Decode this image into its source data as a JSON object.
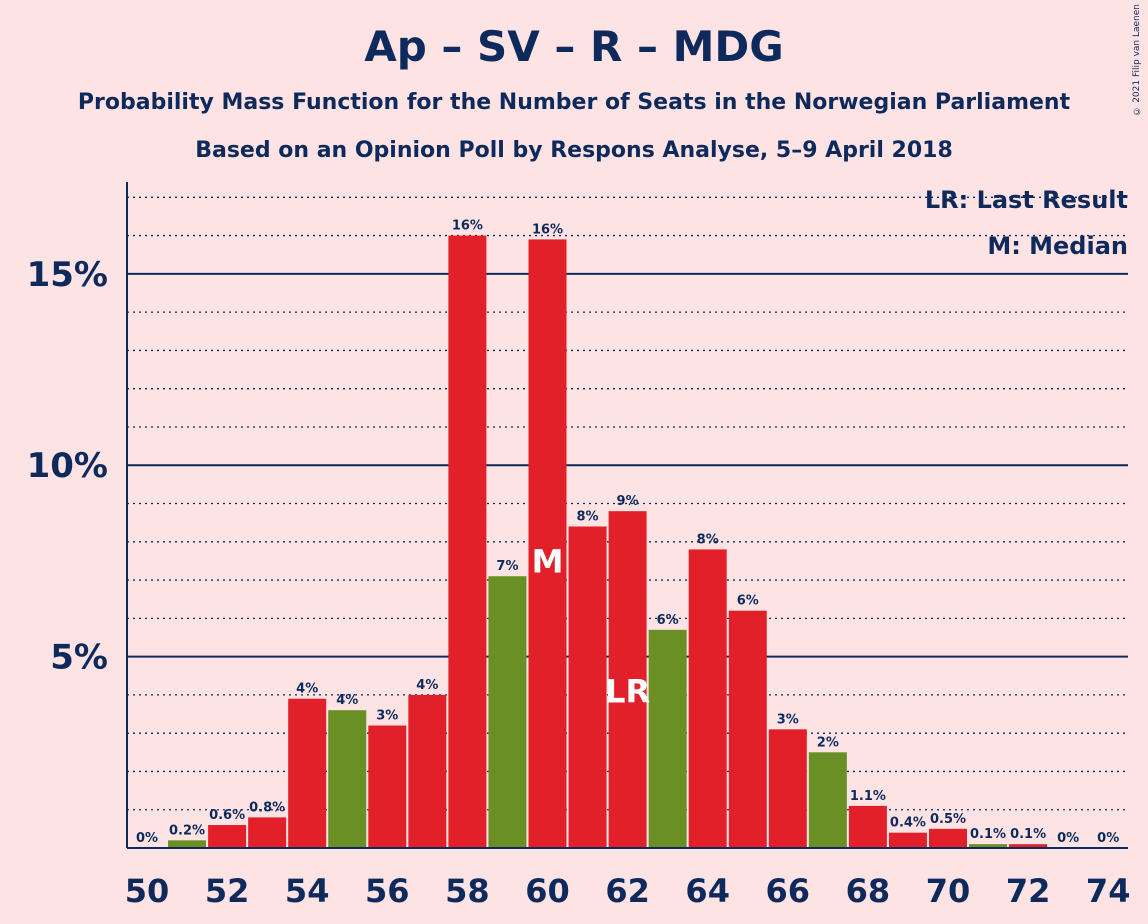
{
  "header": {
    "title": "Ap – SV – R – MDG",
    "subtitle1": "Probability Mass Function for the Number of Seats in the Norwegian Parliament",
    "subtitle2": "Based on an Opinion Poll by Respons Analyse, 5–9 April 2018",
    "copyright": "© 2021 Filip van Laenen"
  },
  "legend": {
    "last_result": "LR: Last Result",
    "median": "M: Median"
  },
  "colors": {
    "red": "#e2202a",
    "green": "#6a8f24",
    "axis": "#0e2a5c",
    "background": "#fde3e3"
  },
  "chart_data": {
    "type": "bar",
    "x": [
      50,
      51,
      52,
      53,
      54,
      55,
      56,
      57,
      58,
      59,
      60,
      61,
      62,
      63,
      64,
      65,
      66,
      67,
      68,
      69,
      70,
      71,
      72,
      73,
      74
    ],
    "values": [
      0,
      0.2,
      0.6,
      0.8,
      3.9,
      3.6,
      3.2,
      4.0,
      16.0,
      7.1,
      15.9,
      8.4,
      8.8,
      5.7,
      7.8,
      6.2,
      3.1,
      2.5,
      1.1,
      0.4,
      0.5,
      0.1,
      0.1,
      0,
      0
    ],
    "labels": [
      "0%",
      "0.2%",
      "0.6%",
      "0.8%",
      "4%",
      "4%",
      "3%",
      "4%",
      "16%",
      "7%",
      "16%",
      "8%",
      "9%",
      "6%",
      "8%",
      "6%",
      "3%",
      "2%",
      "1.1%",
      "0.4%",
      "0.5%",
      "0.1%",
      "0.1%",
      "0%",
      "0%"
    ],
    "bar_colors": [
      "red",
      "green",
      "red",
      "red",
      "red",
      "green",
      "red",
      "red",
      "red",
      "green",
      "red",
      "red",
      "red",
      "green",
      "red",
      "red",
      "red",
      "green",
      "red",
      "red",
      "red",
      "green",
      "red",
      "red",
      "red"
    ],
    "x_ticks": [
      50,
      52,
      54,
      56,
      58,
      60,
      62,
      64,
      66,
      68,
      70,
      72,
      74
    ],
    "y_ticks": [
      5,
      10,
      15
    ],
    "y_tick_labels": [
      "5%",
      "10%",
      "15%"
    ],
    "ylim": [
      0,
      17.4
    ],
    "median_seat": 60,
    "median_marker": "M",
    "last_result_seat": 62,
    "last_result_marker": "LR",
    "grid": "dotted minor every 1%, solid major every 5%"
  }
}
